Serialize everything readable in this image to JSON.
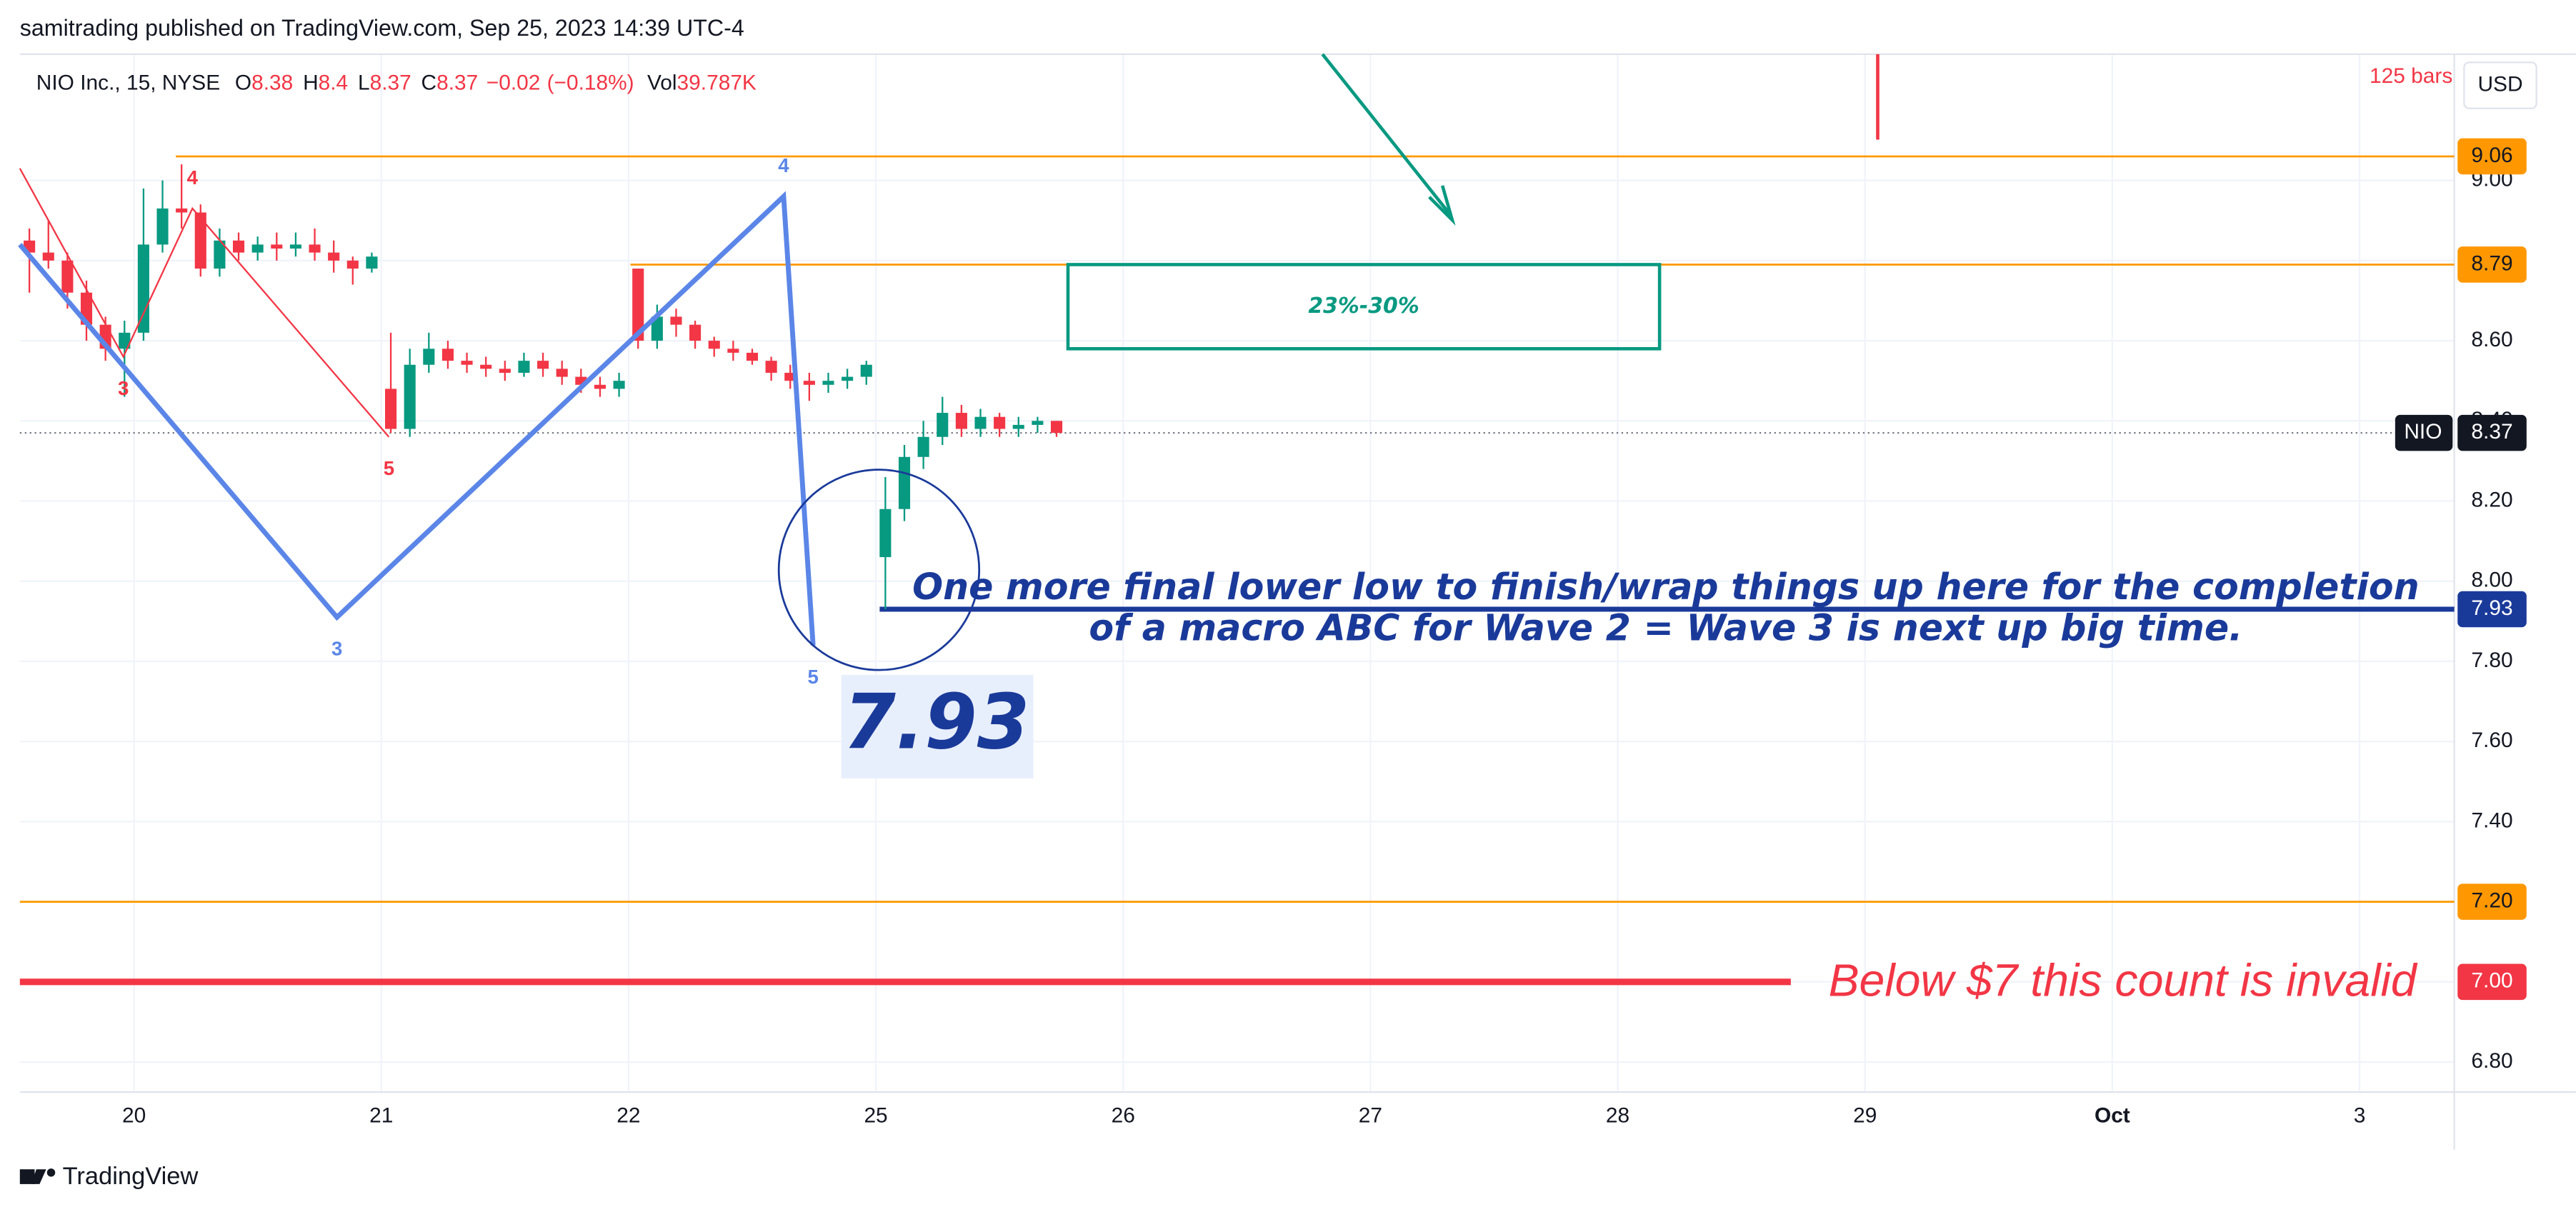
{
  "header": "samitrading published on TradingView.com, Sep 25, 2023 14:39 UTC-4",
  "footer": "TradingView",
  "chart_data": {
    "type": "candlestick",
    "legend": {
      "symbol": "NIO Inc., 15, NYSE",
      "fields": [
        {
          "label": "O",
          "value": 8.38
        },
        {
          "label": "H",
          "value": 8.4
        },
        {
          "label": "L",
          "value": 8.37
        },
        {
          "label": "C",
          "value": 8.37
        }
      ],
      "change": {
        "value": -0.02,
        "label": "−0.02"
      },
      "change_pct": {
        "value": -0.18,
        "label": "(−0.18%)"
      },
      "volume_name": "Vol",
      "volume": {
        "value": 39787,
        "label": "39.787K"
      }
    },
    "bars_label": "125 bars",
    "currency": "USD",
    "up_color": "#089981",
    "down_color": "#f23645",
    "categories": [
      "20",
      "21",
      "22",
      "25",
      "26",
      "27",
      "28",
      "29",
      "Oct",
      "3"
    ],
    "open": [
      8.85,
      8.82,
      8.8,
      8.72,
      8.64,
      8.58,
      8.62,
      8.84,
      8.93,
      8.92,
      8.78,
      8.85,
      8.82,
      8.84,
      8.83,
      8.84,
      8.82,
      8.8,
      8.78,
      8.48,
      8.38,
      8.54,
      8.58,
      8.55,
      8.54,
      8.53,
      8.52,
      8.55,
      8.53,
      8.51,
      8.49,
      8.48,
      8.78,
      8.6,
      8.66,
      8.64,
      8.6,
      8.58,
      8.57,
      8.55,
      8.52,
      8.5,
      8.49,
      8.5,
      8.51,
      8.06,
      8.18,
      8.31,
      8.36,
      8.42,
      8.38,
      8.41,
      8.38,
      8.39,
      8.4
    ],
    "high": [
      8.88,
      8.9,
      8.82,
      8.75,
      8.66,
      8.65,
      8.98,
      9.0,
      9.04,
      8.94,
      8.88,
      8.87,
      8.86,
      8.87,
      8.87,
      8.88,
      8.85,
      8.81,
      8.82,
      8.62,
      8.58,
      8.62,
      8.6,
      8.57,
      8.56,
      8.55,
      8.57,
      8.57,
      8.55,
      8.53,
      8.51,
      8.52,
      8.78,
      8.69,
      8.68,
      8.65,
      8.61,
      8.6,
      8.58,
      8.56,
      8.54,
      8.52,
      8.52,
      8.53,
      8.55,
      8.26,
      8.34,
      8.4,
      8.46,
      8.44,
      8.43,
      8.42,
      8.41,
      8.41,
      8.4
    ],
    "low": [
      8.72,
      8.78,
      8.68,
      8.6,
      8.55,
      8.46,
      8.6,
      8.82,
      8.88,
      8.76,
      8.76,
      8.8,
      8.8,
      8.8,
      8.81,
      8.8,
      8.77,
      8.74,
      8.77,
      8.37,
      8.36,
      8.52,
      8.53,
      8.52,
      8.51,
      8.5,
      8.51,
      8.51,
      8.49,
      8.47,
      8.46,
      8.46,
      8.58,
      8.58,
      8.61,
      8.58,
      8.56,
      8.55,
      8.54,
      8.5,
      8.48,
      8.45,
      8.47,
      8.48,
      8.49,
      7.93,
      8.15,
      8.28,
      8.34,
      8.36,
      8.36,
      8.36,
      8.36,
      8.37,
      8.36
    ],
    "close": [
      8.82,
      8.8,
      8.72,
      8.64,
      8.58,
      8.62,
      8.84,
      8.93,
      8.92,
      8.78,
      8.85,
      8.82,
      8.84,
      8.83,
      8.84,
      8.82,
      8.8,
      8.78,
      8.81,
      8.38,
      8.54,
      8.58,
      8.55,
      8.54,
      8.53,
      8.52,
      8.55,
      8.53,
      8.51,
      8.49,
      8.48,
      8.5,
      8.6,
      8.66,
      8.64,
      8.6,
      8.58,
      8.57,
      8.55,
      8.52,
      8.5,
      8.49,
      8.5,
      8.51,
      8.54,
      8.18,
      8.31,
      8.36,
      8.42,
      8.38,
      8.41,
      8.38,
      8.39,
      8.4,
      8.37
    ],
    "ylim": [
      6.725,
      9.315
    ],
    "yticks": [
      {
        "value": 9.0,
        "label": "9.00"
      },
      {
        "value": 8.8,
        "label": "8.80"
      },
      {
        "value": 8.6,
        "label": "8.60"
      },
      {
        "value": 8.4,
        "label": "8.40"
      },
      {
        "value": 8.2,
        "label": "8.20"
      },
      {
        "value": 8.0,
        "label": "8.00"
      },
      {
        "value": 7.8,
        "label": "7.80"
      },
      {
        "value": 7.6,
        "label": "7.60"
      },
      {
        "value": 7.4,
        "label": "7.40"
      },
      {
        "value": 7.2,
        "label": "7.20"
      },
      {
        "value": 7.0,
        "label": "7.00"
      },
      {
        "value": 6.8,
        "label": "6.80"
      }
    ],
    "grid": true,
    "last_price": {
      "symbol": "NIO",
      "price": 8.37
    },
    "levels": [
      {
        "price": 9.06,
        "color": "#ff9800",
        "from": 8.2
      },
      {
        "price": 8.79,
        "color": "#ff9800",
        "from": 32.1
      },
      {
        "price": 7.93,
        "color": "#1a3a9a",
        "from": 45.2
      },
      {
        "price": 7.2,
        "price_label": "7.20",
        "color": "#ff9800",
        "from": 0
      },
      {
        "price": 7.0,
        "price_label": "7.00",
        "color": "#f23645",
        "from": 0,
        "to": 93.1
      }
    ],
    "waves": [
      {
        "color": "#f23645",
        "points": [
          {
            "x": 0,
            "price": 9.03
          },
          {
            "x": 5.44,
            "price": 8.56,
            "label": "3"
          },
          {
            "x": 9.07,
            "price": 8.93,
            "label": "4"
          },
          {
            "x": 19.4,
            "price": 8.36,
            "label": "5"
          }
        ]
      },
      {
        "color": "#5b86e8",
        "points": [
          {
            "x": 0,
            "price": 8.84
          },
          {
            "x": 16.67,
            "price": 7.91,
            "label": "3"
          },
          {
            "x": 40.15,
            "price": 8.96,
            "label": "4"
          },
          {
            "x": 41.7,
            "price": 7.84,
            "label": "5"
          }
        ]
      }
    ],
    "target_box": {
      "x0": 55.1,
      "x1": 86.2,
      "top": 8.79,
      "bottom": 8.58,
      "label": "23%-30%"
    },
    "callout_price": 7.93,
    "annotation_lines": [
      "One more final lower low to finish/wrap things up here for the completion",
      "of a macro ABC for Wave 2 = Wave 3 is next up big time."
    ],
    "invalid_note": "Below $7 this count is invalid"
  }
}
